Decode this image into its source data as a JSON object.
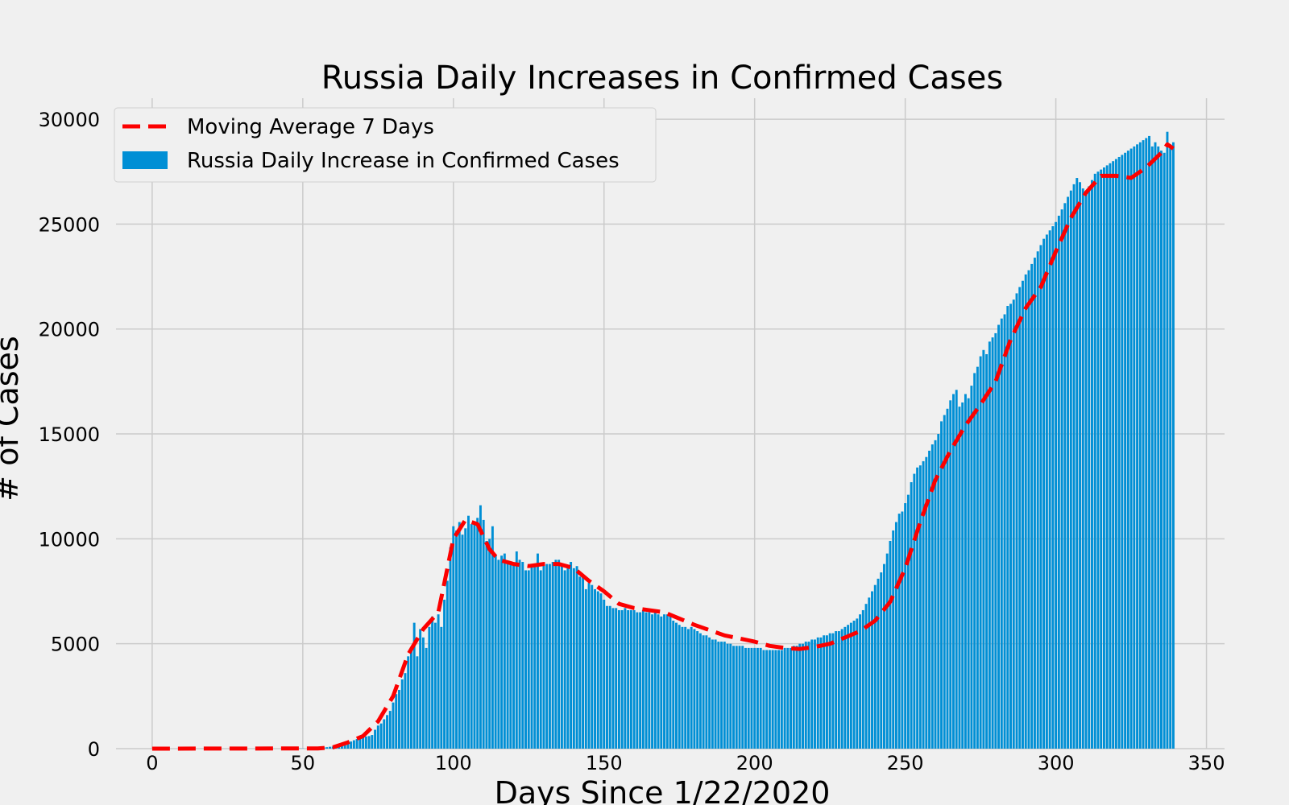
{
  "chart_data": {
    "type": "bar",
    "title": "Russia Daily Increases in Confirmed Cases",
    "xlabel": "Days Since 1/22/2020",
    "ylabel": "# of Cases",
    "xlim": [
      -12,
      356
    ],
    "ylim": [
      0,
      31000
    ],
    "xticks": [
      0,
      50,
      100,
      150,
      200,
      250,
      300,
      350
    ],
    "yticks": [
      0,
      5000,
      10000,
      15000,
      20000,
      25000,
      30000
    ],
    "grid": true,
    "legend": "top-left",
    "colors": {
      "bars": "#008fd5",
      "line": "#fc0000",
      "background": "#f0f0f0",
      "grid": "#cbcbcb"
    },
    "series": [
      {
        "name": "Moving Average 7 Days",
        "type": "line",
        "style": "dashed",
        "points": [
          [
            0,
            0
          ],
          [
            55,
            10
          ],
          [
            60,
            60
          ],
          [
            65,
            300
          ],
          [
            70,
            600
          ],
          [
            75,
            1300
          ],
          [
            80,
            2500
          ],
          [
            85,
            4500
          ],
          [
            90,
            5700
          ],
          [
            95,
            6500
          ],
          [
            100,
            10000
          ],
          [
            104,
            10900
          ],
          [
            108,
            10700
          ],
          [
            112,
            9500
          ],
          [
            115,
            9000
          ],
          [
            120,
            8800
          ],
          [
            125,
            8700
          ],
          [
            130,
            8800
          ],
          [
            135,
            8800
          ],
          [
            140,
            8600
          ],
          [
            145,
            8000
          ],
          [
            150,
            7500
          ],
          [
            155,
            6900
          ],
          [
            160,
            6700
          ],
          [
            170,
            6500
          ],
          [
            180,
            5900
          ],
          [
            190,
            5400
          ],
          [
            200,
            5100
          ],
          [
            205,
            4900
          ],
          [
            210,
            4800
          ],
          [
            215,
            4750
          ],
          [
            220,
            4850
          ],
          [
            225,
            5000
          ],
          [
            230,
            5300
          ],
          [
            235,
            5600
          ],
          [
            240,
            6100
          ],
          [
            245,
            7000
          ],
          [
            250,
            8600
          ],
          [
            255,
            10800
          ],
          [
            260,
            12800
          ],
          [
            265,
            14200
          ],
          [
            270,
            15400
          ],
          [
            275,
            16400
          ],
          [
            280,
            17500
          ],
          [
            285,
            19500
          ],
          [
            290,
            21000
          ],
          [
            295,
            22000
          ],
          [
            300,
            23700
          ],
          [
            305,
            25300
          ],
          [
            310,
            26500
          ],
          [
            315,
            27300
          ],
          [
            320,
            27300
          ],
          [
            325,
            27200
          ],
          [
            330,
            27700
          ],
          [
            335,
            28400
          ],
          [
            337,
            28800
          ],
          [
            339,
            28600
          ]
        ]
      },
      {
        "name": "Russia Daily Increase in Confirmed Cases",
        "type": "bar",
        "x_start": 0,
        "values": [
          0,
          0,
          0,
          0,
          0,
          0,
          0,
          0,
          0,
          0,
          0,
          0,
          0,
          0,
          0,
          0,
          0,
          0,
          0,
          0,
          0,
          0,
          0,
          0,
          0,
          0,
          0,
          0,
          0,
          0,
          0,
          0,
          0,
          0,
          0,
          0,
          0,
          0,
          0,
          0,
          0,
          0,
          0,
          0,
          0,
          0,
          0,
          0,
          0,
          10,
          10,
          0,
          20,
          30,
          30,
          40,
          40,
          60,
          70,
          90,
          100,
          130,
          160,
          200,
          240,
          290,
          340,
          400,
          460,
          520,
          560,
          580,
          600,
          650,
          900,
          1100,
          1200,
          1400,
          1600,
          1800,
          2200,
          2600,
          2800,
          3300,
          3600,
          4400,
          4800,
          6000,
          4400,
          5700,
          5300,
          4800,
          5800,
          6300,
          6000,
          6400,
          5800,
          7100,
          8000,
          9600,
          10600,
          10400,
          10800,
          10200,
          10500,
          11100,
          10700,
          10800,
          11000,
          11600,
          10900,
          9900,
          10000,
          10600,
          9200,
          9000,
          9200,
          9300,
          8900,
          8900,
          8800,
          9400,
          9000,
          8900,
          8500,
          8500,
          8700,
          8800,
          9300,
          8500,
          8800,
          8800,
          8800,
          8900,
          9000,
          9000,
          8800,
          8500,
          8600,
          8900,
          8600,
          8700,
          8200,
          8200,
          7600,
          7900,
          7800,
          7600,
          7500,
          7400,
          7100,
          6800,
          6800,
          6700,
          6700,
          6600,
          6600,
          6700,
          6600,
          6600,
          6600,
          6500,
          6500,
          6600,
          6500,
          6500,
          6400,
          6500,
          6400,
          6300,
          6400,
          6400,
          6300,
          6100,
          6000,
          5900,
          5800,
          5800,
          5700,
          5800,
          5700,
          5600,
          5500,
          5400,
          5400,
          5300,
          5200,
          5200,
          5100,
          5100,
          5100,
          5000,
          5000,
          4900,
          4900,
          4900,
          4900,
          4800,
          4800,
          4800,
          4800,
          4800,
          4800,
          4700,
          4700,
          4700,
          4700,
          4700,
          4700,
          4700,
          4800,
          4800,
          4800,
          4900,
          4900,
          5000,
          5000,
          5100,
          5100,
          5200,
          5200,
          5300,
          5300,
          5400,
          5400,
          5500,
          5500,
          5600,
          5600,
          5700,
          5800,
          5900,
          6000,
          6100,
          6200,
          6400,
          6600,
          6900,
          7200,
          7500,
          7800,
          8100,
          8400,
          8800,
          9300,
          9900,
          10400,
          10800,
          11200,
          11300,
          11700,
          12100,
          12700,
          13100,
          13400,
          13500,
          13700,
          13900,
          14200,
          14500,
          14700,
          15000,
          15600,
          15900,
          16200,
          16600,
          16900,
          17100,
          16300,
          16500,
          16900,
          16700,
          17300,
          17900,
          18200,
          18700,
          19000,
          18800,
          19400,
          19600,
          19800,
          20200,
          20500,
          20700,
          21100,
          21200,
          21400,
          21700,
          22000,
          22300,
          22600,
          22800,
          23100,
          23400,
          23700,
          24000,
          24300,
          24500,
          24700,
          24900,
          25100,
          25400,
          25700,
          26000,
          26300,
          26600,
          26900,
          27200,
          27000,
          26700,
          26500,
          26800,
          27100,
          27400,
          27500,
          27600,
          27700,
          27800,
          27900,
          28000,
          28100,
          28200,
          28300,
          28400,
          28500,
          28600,
          28700,
          28800,
          28900,
          29000,
          29100,
          29200,
          28700,
          28900,
          28700,
          28500,
          28400,
          29400,
          28800,
          28900
        ]
      }
    ]
  }
}
